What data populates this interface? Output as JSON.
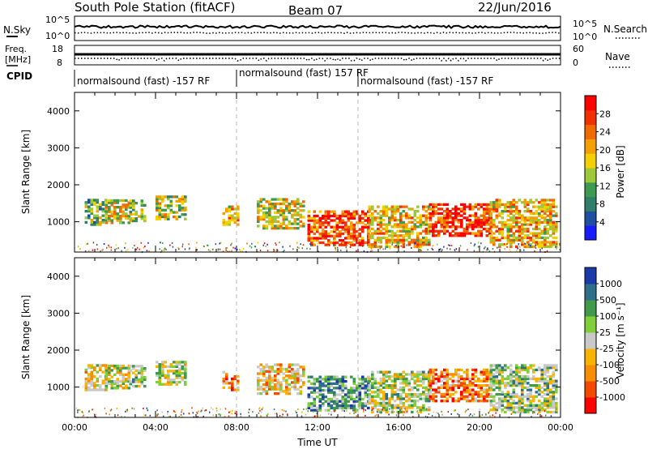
{
  "header": {
    "station": "South Pole Station (fitACF)",
    "beam": "Beam 07",
    "date": "22/Jun/2016"
  },
  "top_panels": {
    "nsky_label": "N.Sky",
    "nsky_ticks": [
      "10^5",
      "10^0"
    ],
    "nsearch_label": "N.Search",
    "nsearch_ticks": [
      "10^5",
      "10^0"
    ],
    "freq_label_1": "Freq.",
    "freq_label_2": "[MHz]",
    "freq_ticks": [
      "18",
      "8"
    ],
    "nave_label": "Nave",
    "nave_ticks": [
      "60",
      "0"
    ],
    "cpid_label": "CPID",
    "cpid_segments": [
      {
        "text": "normalsound (fast) -157 RF"
      },
      {
        "text": "normalsound (fast) 157 RF"
      },
      {
        "text": "normalsound (fast) -157 RF"
      }
    ]
  },
  "colors": {
    "power_scale": [
      "#1a1aff",
      "#1f4fa0",
      "#2f7f6a",
      "#3c9a52",
      "#9cc83a",
      "#f4d000",
      "#f4a000",
      "#f06a00",
      "#f03000",
      "#ff0000"
    ],
    "velocity_scale": [
      "#ff0000",
      "#f24a00",
      "#f78d00",
      "#f8b400",
      "#c9c9c9",
      "#7fcf3a",
      "#3f9a4a",
      "#2f6f8a",
      "#1a3aaa"
    ]
  },
  "chart_data": [
    {
      "type": "heatmap",
      "name": "power-panel",
      "ylabel": "Slant Range [km]",
      "yticks": [
        "4000",
        "3000",
        "2000",
        "1000"
      ],
      "ylim": [
        180,
        4500
      ],
      "xlim_hours": [
        0,
        24
      ],
      "colorbar_label": "Power [dB]",
      "colorbar_ticks": [
        "28",
        "24",
        "20",
        "16",
        "12",
        "8",
        "4"
      ],
      "cpid_change_hours": [
        8.0,
        14.0
      ],
      "echo_regions": [
        {
          "t0": 0.5,
          "t1": 1.5,
          "r0": 900,
          "r1": 1600,
          "level": 0.4
        },
        {
          "t0": 1.5,
          "t1": 2.7,
          "r0": 950,
          "r1": 1600,
          "level": 0.55
        },
        {
          "t0": 2.7,
          "t1": 3.5,
          "r0": 1000,
          "r1": 1600,
          "level": 0.45
        },
        {
          "t0": 4.0,
          "t1": 5.5,
          "r0": 1050,
          "r1": 1700,
          "level": 0.5
        },
        {
          "t0": 7.3,
          "t1": 8.0,
          "r0": 900,
          "r1": 1400,
          "level": 0.6
        },
        {
          "t0": 9.0,
          "t1": 11.3,
          "r0": 800,
          "r1": 1600,
          "level": 0.55
        },
        {
          "t0": 11.5,
          "t1": 14.5,
          "r0": 350,
          "r1": 1300,
          "level": 0.82
        },
        {
          "t0": 14.5,
          "t1": 17.5,
          "r0": 300,
          "r1": 1400,
          "level": 0.6
        },
        {
          "t0": 17.5,
          "t1": 20.5,
          "r0": 600,
          "r1": 1500,
          "level": 0.88
        },
        {
          "t0": 20.5,
          "t1": 23.8,
          "r0": 300,
          "r1": 1600,
          "level": 0.62
        }
      ]
    },
    {
      "type": "heatmap",
      "name": "velocity-panel",
      "xlabel": "Time UT",
      "ylabel": "Slant Range [km]",
      "xticks": [
        "00:00",
        "04:00",
        "08:00",
        "12:00",
        "16:00",
        "20:00",
        "00:00"
      ],
      "yticks": [
        "4000",
        "3000",
        "2000",
        "1000"
      ],
      "ylim": [
        180,
        4500
      ],
      "xlim_hours": [
        0,
        24
      ],
      "colorbar_label": "Velocity [m s⁻¹]",
      "colorbar_ticks": [
        "1000",
        "500",
        "100",
        "25",
        "-25",
        "-100",
        "-500",
        "-1000"
      ],
      "cpid_change_hours": [
        8.0,
        14.0
      ],
      "echo_regions": [
        {
          "t0": 0.5,
          "t1": 1.5,
          "r0": 900,
          "r1": 1600,
          "level": 0.45
        },
        {
          "t0": 1.5,
          "t1": 2.7,
          "r0": 950,
          "r1": 1600,
          "level": 0.5
        },
        {
          "t0": 2.7,
          "t1": 3.5,
          "r0": 1000,
          "r1": 1600,
          "level": 0.6
        },
        {
          "t0": 4.0,
          "t1": 5.5,
          "r0": 1050,
          "r1": 1700,
          "level": 0.55
        },
        {
          "t0": 7.3,
          "t1": 8.0,
          "r0": 900,
          "r1": 1400,
          "level": 0.3
        },
        {
          "t0": 9.0,
          "t1": 11.3,
          "r0": 800,
          "r1": 1600,
          "level": 0.4
        },
        {
          "t0": 11.5,
          "t1": 14.5,
          "r0": 350,
          "r1": 1300,
          "level": 0.7
        },
        {
          "t0": 14.5,
          "t1": 17.5,
          "r0": 300,
          "r1": 1400,
          "level": 0.55
        },
        {
          "t0": 17.5,
          "t1": 20.5,
          "r0": 600,
          "r1": 1500,
          "level": 0.25
        },
        {
          "t0": 20.5,
          "t1": 23.8,
          "r0": 300,
          "r1": 1600,
          "level": 0.6
        }
      ]
    }
  ]
}
